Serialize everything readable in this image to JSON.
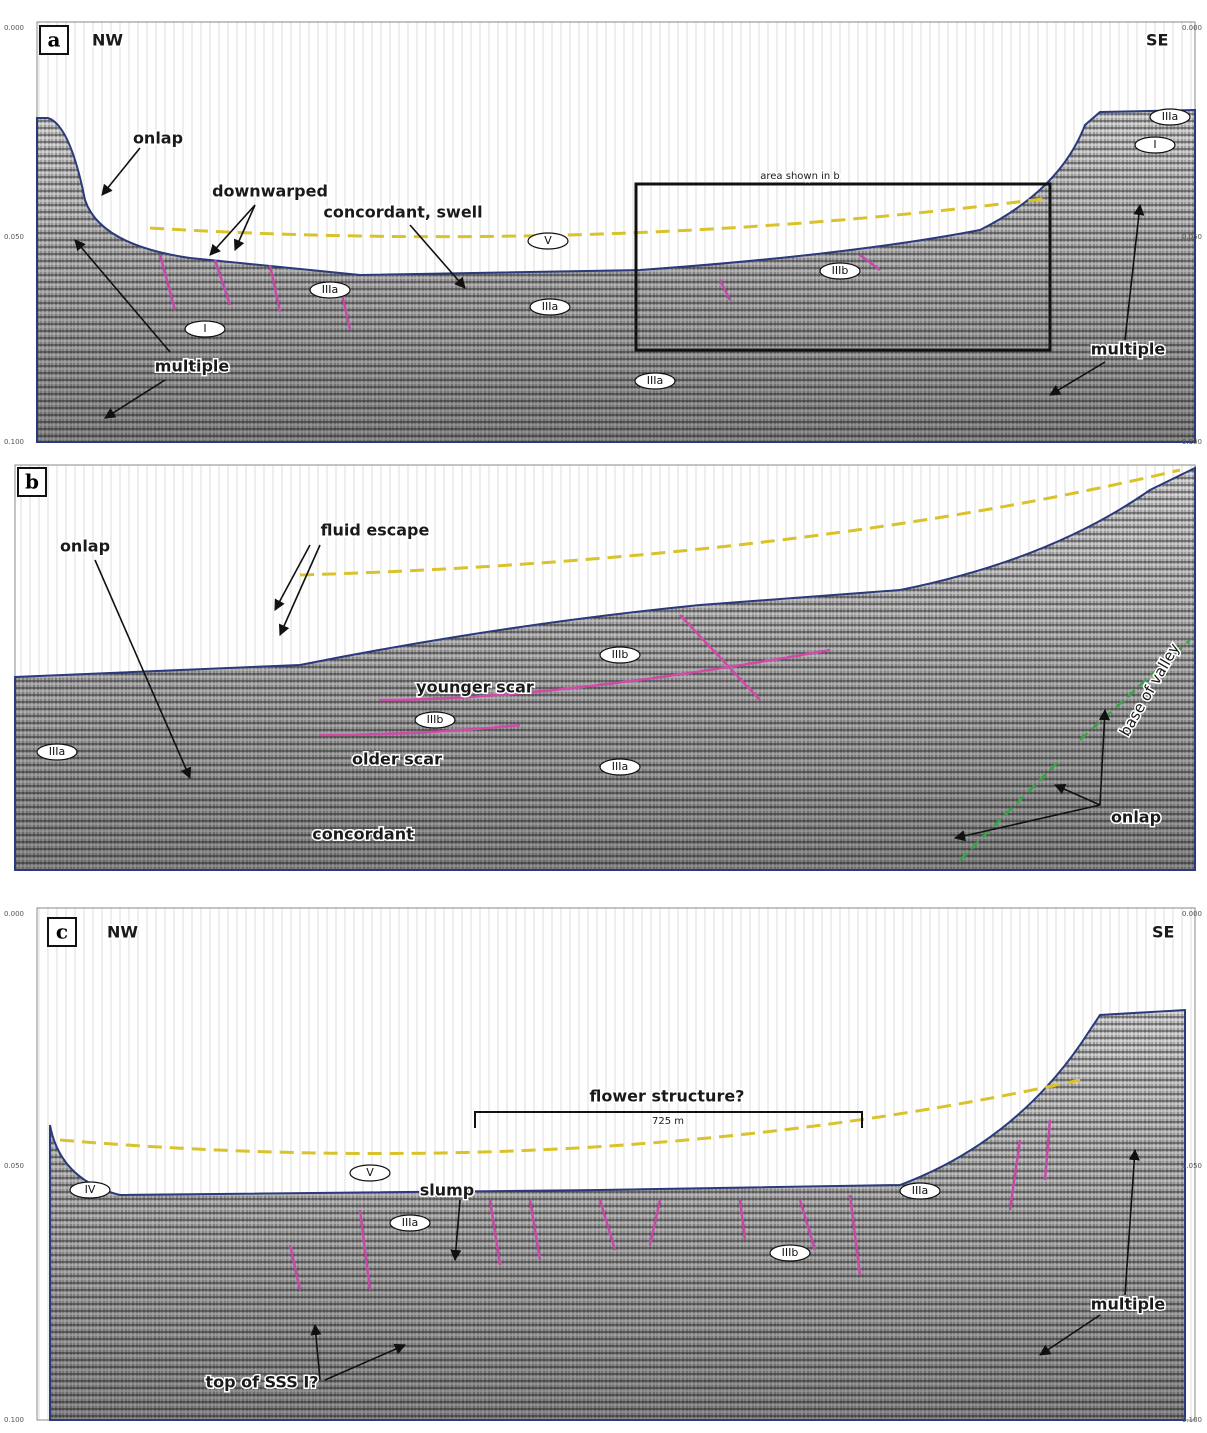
{
  "panels": [
    {
      "letter": "a",
      "left": "NW",
      "right": "SE",
      "axis_ticks": [
        "0.000",
        "0.050",
        "0.100"
      ],
      "labels": [
        "onlap",
        "downwarped",
        "concordant, swell",
        "multiple",
        "multiple",
        "area shown in b"
      ],
      "units": [
        "V",
        "IIIa",
        "IIIa",
        "IIIa",
        "IIIa",
        "I",
        "I",
        "IIIb"
      ]
    },
    {
      "letter": "b",
      "labels": [
        "fluid escape",
        "onlap",
        "younger scar",
        "older scar",
        "concordant",
        "base of valley",
        "onlap"
      ],
      "units": [
        "IIIb",
        "IIIb",
        "IIIa",
        "IIIa"
      ]
    },
    {
      "letter": "c",
      "left": "NW",
      "right": "SE",
      "axis_ticks": [
        "0.000",
        "0.050",
        "0.100"
      ],
      "labels": [
        "flower structure?",
        "725 m",
        "slump",
        "multiple",
        "top of SSS I?"
      ],
      "units": [
        "V",
        "IV",
        "IIIa",
        "IIIa",
        "IIIb"
      ]
    }
  ]
}
